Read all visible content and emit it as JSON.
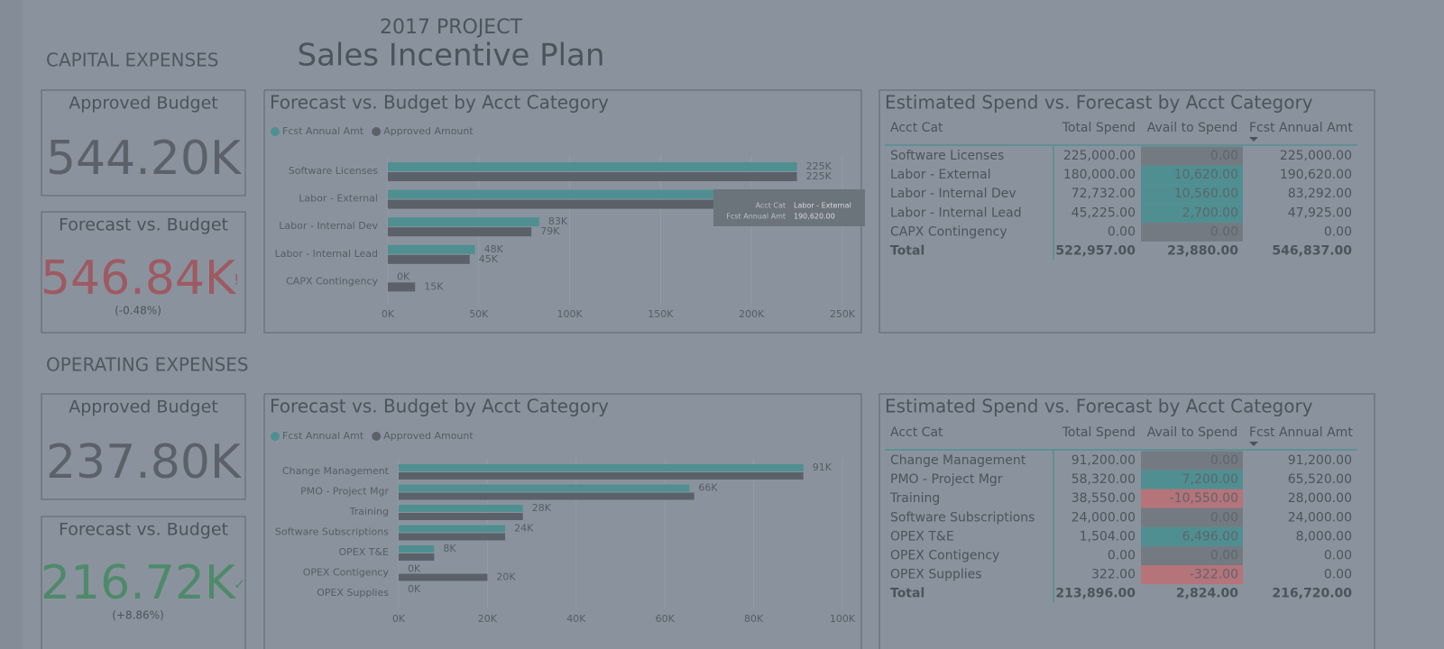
{
  "header": {
    "subtitle": "2017 PROJECT",
    "title": "Sales Incentive Plan"
  },
  "sections": [
    {
      "title": "CAPITAL EXPENSES",
      "cards": [
        {
          "title": "Approved Budget",
          "value": "544.20K"
        },
        {
          "title": "Forecast vs. Budget",
          "value": "546.84K",
          "indicator": "!",
          "note": "(-0.48%)"
        }
      ],
      "tooltip": {
        "label": "Acct Cat",
        "value": "Labor - External",
        "label2": "Fcst Annual Amt",
        "value2": "190,620.00"
      },
      "table": {
        "title": "Estimated Spend vs. Forecast by Acct Category",
        "columns": [
          "Acct Cat",
          "Total Spend",
          "Avail to Spend",
          "Fcst Annual Amt"
        ],
        "rows": [
          [
            "Software Licenses",
            "225,000.00",
            "0.00",
            "225,000.00"
          ],
          [
            "Labor - External",
            "180,000.00",
            "10,620.00",
            "190,620.00"
          ],
          [
            "Labor - Internal Dev",
            "72,732.00",
            "10,560.00",
            "83,292.00"
          ],
          [
            "Labor - Internal Lead",
            "45,225.00",
            "2,700.00",
            "47,925.00"
          ],
          [
            "CAPX Contingency",
            "0.00",
            "0.00",
            "0.00"
          ]
        ],
        "total": [
          "Total",
          "522,957.00",
          "23,880.00",
          "546,837.00"
        ]
      }
    },
    {
      "title": "OPERATING EXPENSES",
      "cards": [
        {
          "title": "Approved Budget",
          "value": "237.80K"
        },
        {
          "title": "Forecast vs. Budget",
          "value": "216.72K",
          "indicator": "✓",
          "note": "(+8.86%)"
        }
      ],
      "table": {
        "title": "Estimated Spend vs. Forecast by Acct Category",
        "columns": [
          "Acct Cat",
          "Total Spend",
          "Avail to Spend",
          "Fcst Annual Amt"
        ],
        "rows": [
          [
            "Change Management",
            "91,200.00",
            "0.00",
            "91,200.00"
          ],
          [
            "PMO - Project Mgr",
            "58,320.00",
            "7,200.00",
            "65,520.00"
          ],
          [
            "Training",
            "38,550.00",
            "-10,550.00",
            "28,000.00"
          ],
          [
            "Software Subscriptions",
            "24,000.00",
            "0.00",
            "24,000.00"
          ],
          [
            "OPEX T&E",
            "1,504.00",
            "6,496.00",
            "8,000.00"
          ],
          [
            "OPEX Contigency",
            "0.00",
            "0.00",
            "0.00"
          ],
          [
            "OPEX Supplies",
            "322.00",
            "-322.00",
            "0.00"
          ]
        ],
        "total": [
          "Total",
          "213,896.00",
          "2,824.00",
          "216,720.00"
        ]
      }
    }
  ],
  "chart_data": [
    {
      "type": "bar",
      "orientation": "horizontal",
      "title": "Forecast vs. Budget by Acct Category",
      "categories": [
        "Software Licenses",
        "Labor - External",
        "Labor - Internal Dev",
        "Labor - Internal Lead",
        "CAPX Contingency"
      ],
      "series": [
        {
          "name": "Fcst Annual Amt",
          "color": "#4f8f91",
          "values": [
            225000,
            190620,
            83292,
            47925,
            0
          ],
          "value_labels": [
            "225K",
            null,
            "83K",
            "48K",
            "0K"
          ]
        },
        {
          "name": "Approved Amount",
          "color": "#5b6168",
          "values": [
            225000,
            180000,
            79000,
            45000,
            15000
          ],
          "value_labels": [
            "225K",
            null,
            "79K",
            "45K",
            "15K"
          ]
        }
      ],
      "xlim": [
        0,
        250000
      ],
      "xticks": [
        {
          "value": 0,
          "label": "0K"
        },
        {
          "value": 50000,
          "label": "50K"
        },
        {
          "value": 100000,
          "label": "100K"
        },
        {
          "value": 150000,
          "label": "150K"
        },
        {
          "value": 200000,
          "label": "200K"
        },
        {
          "value": 250000,
          "label": "250K"
        }
      ],
      "grid": true
    },
    {
      "type": "bar",
      "orientation": "horizontal",
      "title": "Forecast vs. Budget by Acct Category",
      "categories": [
        "Change Management",
        "PMO - Project Mgr",
        "Training",
        "Software Subscriptions",
        "OPEX T&E",
        "OPEX Contigency",
        "OPEX Supplies"
      ],
      "series": [
        {
          "name": "Fcst Annual Amt",
          "color": "#4f8f91",
          "values": [
            91200,
            65520,
            28000,
            24000,
            8000,
            0,
            0
          ],
          "value_labels": [
            "91K",
            "66K",
            "28K",
            "24K",
            "8K",
            "0K",
            "0K"
          ]
        },
        {
          "name": "Approved Amount",
          "color": "#5b6168",
          "values": [
            91200,
            66600,
            28000,
            24000,
            8000,
            20000,
            0
          ],
          "value_labels": [
            null,
            null,
            null,
            null,
            null,
            "20K",
            null
          ]
        }
      ],
      "xlim": [
        0,
        100000
      ],
      "xticks": [
        {
          "value": 0,
          "label": "0K"
        },
        {
          "value": 20000,
          "label": "20K"
        },
        {
          "value": 40000,
          "label": "40K"
        },
        {
          "value": 60000,
          "label": "60K"
        },
        {
          "value": 80000,
          "label": "80K"
        },
        {
          "value": 100000,
          "label": "100K"
        }
      ],
      "grid": true
    }
  ]
}
